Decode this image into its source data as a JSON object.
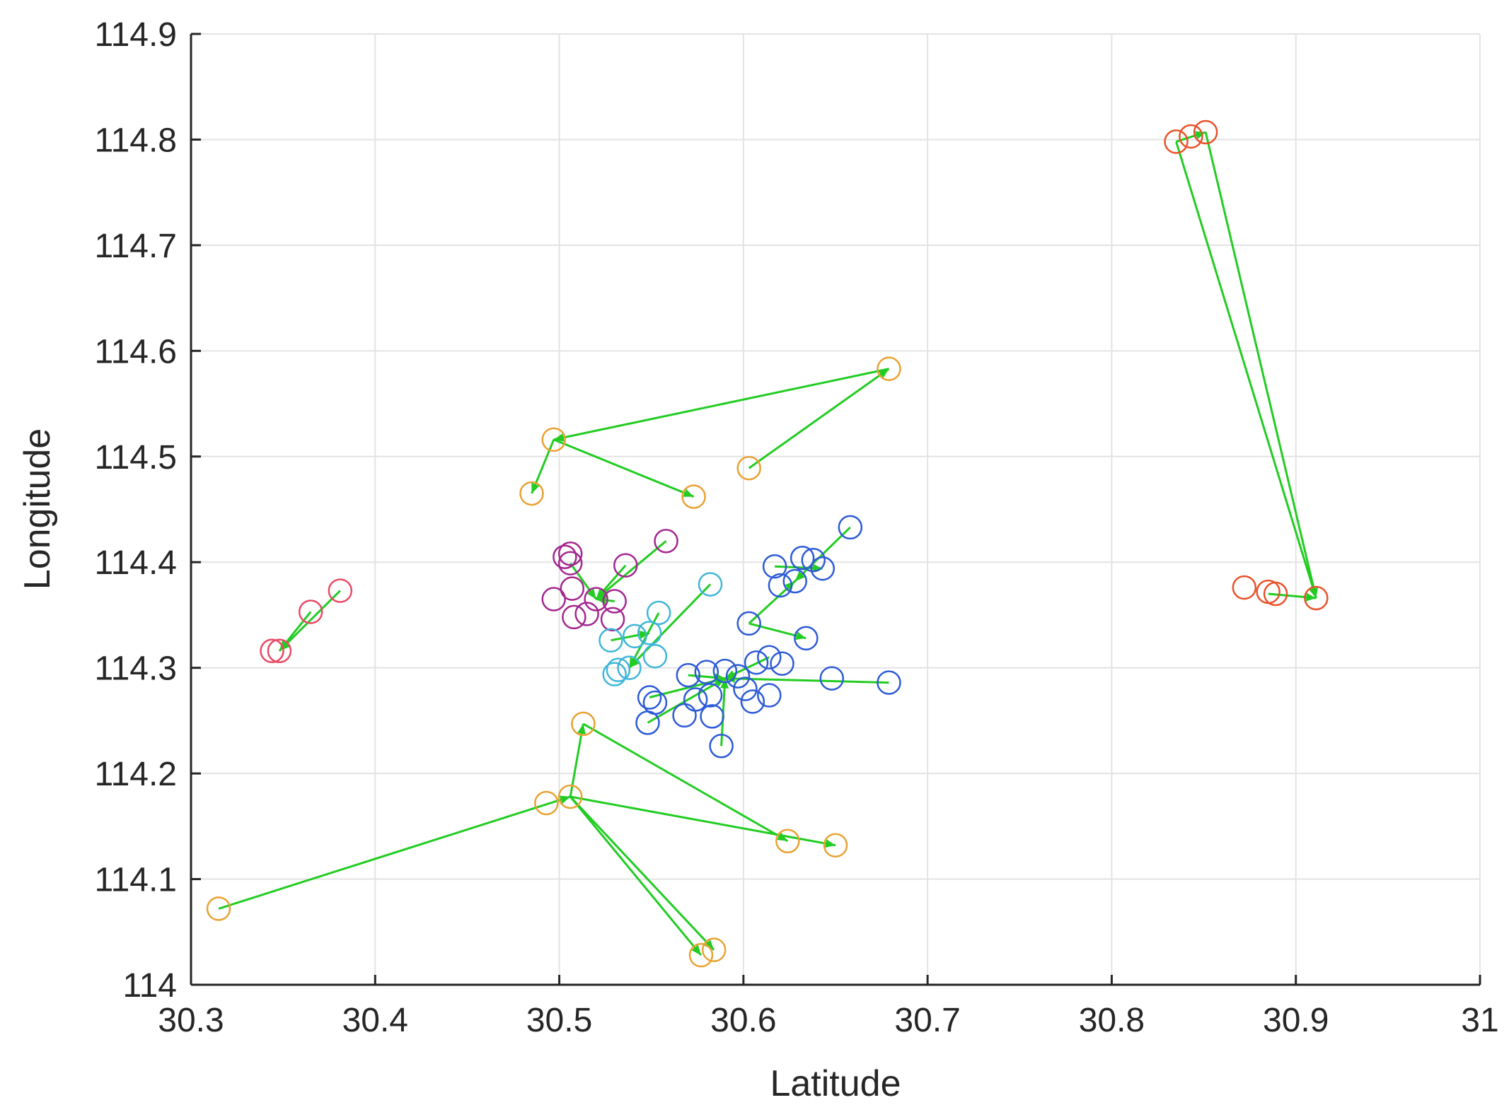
{
  "chart_data": {
    "type": "scatter",
    "title": "",
    "xlabel": "Latitude",
    "ylabel": "Longitude",
    "xlim": [
      30.3,
      31
    ],
    "ylim": [
      114,
      114.9
    ],
    "xticks": [
      "30.3",
      "30.4",
      "30.5",
      "30.6",
      "30.7",
      "30.8",
      "30.9",
      "31"
    ],
    "yticks": [
      "114",
      "114.1",
      "114.2",
      "114.3",
      "114.4",
      "114.5",
      "114.6",
      "114.7",
      "114.8",
      "114.9"
    ],
    "grid": true,
    "legend": "none",
    "marker": "open-circle",
    "route_color": "#22cc22",
    "clusters": [
      {
        "color": "#e8522a",
        "points": [
          [
            30.835,
            114.798
          ],
          [
            30.843,
            114.803
          ],
          [
            30.851,
            114.807
          ],
          [
            30.872,
            114.376
          ],
          [
            30.885,
            114.372
          ],
          [
            30.889,
            114.37
          ],
          [
            30.911,
            114.366
          ]
        ],
        "routes": [
          [
            [
              30.835,
              114.798
            ],
            [
              30.911,
              114.366
            ]
          ],
          [
            [
              30.851,
              114.807
            ],
            [
              30.911,
              114.366
            ]
          ],
          [
            [
              30.835,
              114.798
            ],
            [
              30.851,
              114.807
            ]
          ],
          [
            [
              30.885,
              114.37
            ],
            [
              30.911,
              114.366
            ]
          ]
        ]
      },
      {
        "color": "#e84a66",
        "points": [
          [
            30.344,
            114.316
          ],
          [
            30.348,
            114.316
          ],
          [
            30.365,
            114.353
          ],
          [
            30.381,
            114.373
          ]
        ],
        "routes": [
          [
            [
              30.381,
              114.373
            ],
            [
              30.348,
              114.316
            ]
          ],
          [
            [
              30.365,
              114.353
            ],
            [
              30.348,
              114.316
            ]
          ]
        ]
      },
      {
        "color": "#e8a232",
        "points": [
          [
            30.485,
            114.465
          ],
          [
            30.497,
            114.516
          ],
          [
            30.573,
            114.462
          ],
          [
            30.603,
            114.489
          ],
          [
            30.679,
            114.583
          ],
          [
            30.315,
            114.072
          ],
          [
            30.493,
            114.172
          ],
          [
            30.506,
            114.178
          ],
          [
            30.513,
            114.247
          ],
          [
            30.577,
            114.028
          ],
          [
            30.584,
            114.033
          ],
          [
            30.624,
            114.136
          ],
          [
            30.65,
            114.132
          ]
        ],
        "routes": [
          [
            [
              30.679,
              114.583
            ],
            [
              30.497,
              114.516
            ]
          ],
          [
            [
              30.603,
              114.489
            ],
            [
              30.679,
              114.583
            ]
          ],
          [
            [
              30.497,
              114.516
            ],
            [
              30.573,
              114.462
            ]
          ],
          [
            [
              30.497,
              114.516
            ],
            [
              30.485,
              114.465
            ]
          ],
          [
            [
              30.315,
              114.072
            ],
            [
              30.506,
              114.178
            ]
          ],
          [
            [
              30.506,
              114.178
            ],
            [
              30.513,
              114.247
            ]
          ],
          [
            [
              30.513,
              114.247
            ],
            [
              30.624,
              114.136
            ]
          ],
          [
            [
              30.506,
              114.178
            ],
            [
              30.65,
              114.132
            ]
          ],
          [
            [
              30.506,
              114.178
            ],
            [
              30.577,
              114.028
            ]
          ],
          [
            [
              30.506,
              114.178
            ],
            [
              30.584,
              114.033
            ]
          ]
        ]
      },
      {
        "color": "#a3268f",
        "points": [
          [
            30.503,
            114.405
          ],
          [
            30.506,
            114.408
          ],
          [
            30.506,
            114.399
          ],
          [
            30.507,
            114.375
          ],
          [
            30.497,
            114.365
          ],
          [
            30.508,
            114.348
          ],
          [
            30.515,
            114.351
          ],
          [
            30.52,
            114.365
          ],
          [
            30.53,
            114.363
          ],
          [
            30.529,
            114.346
          ],
          [
            30.536,
            114.397
          ],
          [
            30.558,
            114.42
          ]
        ],
        "routes": [
          [
            [
              30.558,
              114.42
            ],
            [
              30.52,
              114.365
            ]
          ],
          [
            [
              30.506,
              114.399
            ],
            [
              30.52,
              114.365
            ]
          ],
          [
            [
              30.536,
              114.397
            ],
            [
              30.52,
              114.365
            ]
          ],
          [
            [
              30.53,
              114.363
            ],
            [
              30.52,
              114.365
            ]
          ]
        ]
      },
      {
        "color": "#3fb6d8",
        "points": [
          [
            30.582,
            114.379
          ],
          [
            30.554,
            114.352
          ],
          [
            30.541,
            114.33
          ],
          [
            30.549,
            114.333
          ],
          [
            30.528,
            114.326
          ],
          [
            30.532,
            114.298
          ],
          [
            30.538,
            114.3
          ],
          [
            30.552,
            114.311
          ],
          [
            30.53,
            114.294
          ]
        ],
        "routes": [
          [
            [
              30.582,
              114.379
            ],
            [
              30.538,
              114.3
            ]
          ],
          [
            [
              30.554,
              114.352
            ],
            [
              30.538,
              114.3
            ]
          ],
          [
            [
              30.528,
              114.326
            ],
            [
              30.549,
              114.333
            ]
          ]
        ]
      },
      {
        "color": "#2d5bd6",
        "points": [
          [
            30.658,
            114.433
          ],
          [
            30.643,
            114.394
          ],
          [
            30.638,
            114.402
          ],
          [
            30.632,
            114.404
          ],
          [
            30.628,
            114.382
          ],
          [
            30.62,
            114.378
          ],
          [
            30.617,
            114.396
          ],
          [
            30.603,
            114.342
          ],
          [
            30.634,
            114.328
          ],
          [
            30.548,
            114.248
          ],
          [
            30.549,
            114.272
          ],
          [
            30.552,
            114.267
          ],
          [
            30.568,
            114.255
          ],
          [
            30.57,
            114.293
          ],
          [
            30.574,
            114.27
          ],
          [
            30.58,
            114.296
          ],
          [
            30.582,
            114.274
          ],
          [
            30.583,
            114.254
          ],
          [
            30.588,
            114.226
          ],
          [
            30.59,
            114.297
          ],
          [
            30.597,
            114.292
          ],
          [
            30.601,
            114.28
          ],
          [
            30.605,
            114.268
          ],
          [
            30.607,
            114.305
          ],
          [
            30.614,
            114.31
          ],
          [
            30.614,
            114.274
          ],
          [
            30.621,
            114.304
          ],
          [
            30.648,
            114.29
          ],
          [
            30.679,
            114.286
          ]
        ],
        "routes": [
          [
            [
              30.658,
              114.433
            ],
            [
              30.628,
              114.382
            ]
          ],
          [
            [
              30.617,
              114.396
            ],
            [
              30.643,
              114.394
            ]
          ],
          [
            [
              30.603,
              114.342
            ],
            [
              30.628,
              114.382
            ]
          ],
          [
            [
              30.603,
              114.342
            ],
            [
              30.634,
              114.328
            ]
          ],
          [
            [
              30.679,
              114.286
            ],
            [
              30.59,
              114.29
            ]
          ],
          [
            [
              30.548,
              114.248
            ],
            [
              30.59,
              114.29
            ]
          ],
          [
            [
              30.57,
              114.293
            ],
            [
              30.59,
              114.29
            ]
          ],
          [
            [
              30.588,
              114.226
            ],
            [
              30.59,
              114.29
            ]
          ],
          [
            [
              30.614,
              114.31
            ],
            [
              30.59,
              114.29
            ]
          ],
          [
            [
              30.549,
              114.272
            ],
            [
              30.59,
              114.29
            ]
          ]
        ]
      }
    ]
  }
}
